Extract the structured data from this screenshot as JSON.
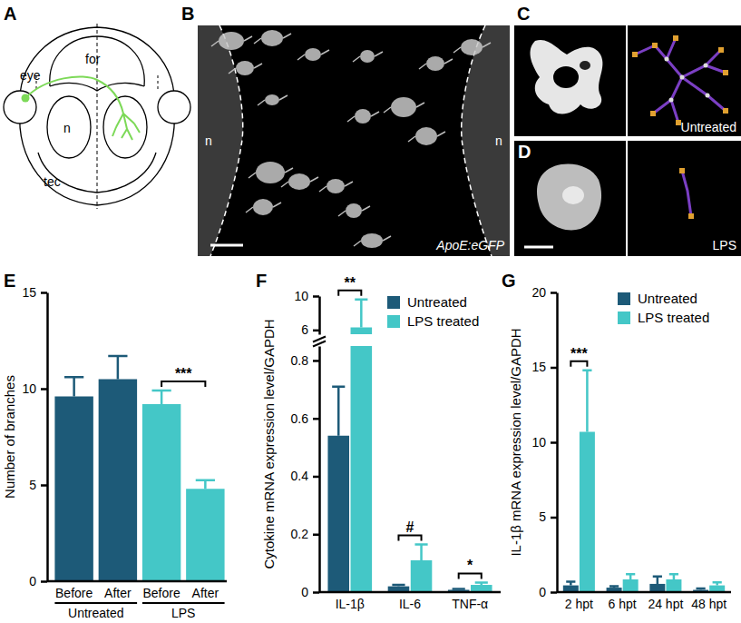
{
  "figure": {
    "panel_letters": [
      "A",
      "B",
      "C",
      "D",
      "E",
      "F",
      "G"
    ]
  },
  "diagram": {
    "labels": [
      "eye",
      "for",
      "n",
      "tec"
    ]
  },
  "images": {
    "B": {
      "labels": [
        "n",
        "n"
      ],
      "caption": "ApoE:eGFP"
    },
    "C": {
      "caption": "Untreated"
    },
    "D": {
      "caption": "LPS"
    }
  },
  "chart_data": [
    {
      "type": "bar",
      "categories": [
        "Before",
        "After",
        "Before",
        "After"
      ],
      "groups": [
        "Untreated",
        "LPS"
      ],
      "values": [
        9.6,
        10.5,
        9.2,
        4.8
      ],
      "errors": [
        1.0,
        1.2,
        0.7,
        0.45
      ],
      "colors": [
        "#1d5a78",
        "#1d5a78",
        "#44c7c7",
        "#44c7c7"
      ],
      "y_label": "Number of branches",
      "ylim": [
        0,
        15
      ],
      "yticks": [
        0,
        5,
        10,
        15
      ],
      "annotations": [
        {
          "text": "***",
          "x": [
            2,
            3
          ]
        }
      ]
    },
    {
      "type": "bar",
      "categories": [
        "IL-1β",
        "IL-6",
        "TNF-α"
      ],
      "series": [
        {
          "name": "Untreated",
          "color": "#1d5a78",
          "values": [
            0.54,
            0.02,
            0.008
          ],
          "errors": [
            0.17,
            0.005,
            0.003
          ]
        },
        {
          "name": "LPS treated",
          "color": "#44c7c7",
          "values": [
            6.3,
            0.11,
            0.025
          ],
          "errors": [
            3.3,
            0.055,
            0.008
          ]
        }
      ],
      "y_label": "Cytokine mRNA expression level/GAPDH",
      "ylim": [
        0,
        10
      ],
      "axis_break": [
        0.85,
        5.5
      ],
      "yticks": [
        0,
        0.2,
        0.4,
        0.6,
        0.8,
        6,
        10
      ],
      "legend": "top-right",
      "annotations": [
        {
          "text": "**",
          "x": 0
        },
        {
          "text": "#",
          "x": 1
        },
        {
          "text": "*",
          "x": 2
        }
      ]
    },
    {
      "type": "bar",
      "categories": [
        "2 hpt",
        "6 hpt",
        "24 hpt",
        "48 hpt"
      ],
      "series": [
        {
          "name": "Untreated",
          "color": "#1d5a78",
          "values": [
            0.45,
            0.3,
            0.55,
            0.15
          ],
          "errors": [
            0.25,
            0.1,
            0.5,
            0.1
          ]
        },
        {
          "name": "LPS treated",
          "color": "#44c7c7",
          "values": [
            10.7,
            0.85,
            0.85,
            0.45
          ],
          "errors": [
            4.1,
            0.35,
            0.35,
            0.2
          ]
        }
      ],
      "y_label": "IL-1β mRNA expression level/GAPDH",
      "ylim": [
        0,
        20
      ],
      "yticks": [
        0,
        5,
        10,
        15,
        20
      ],
      "legend": "top-right",
      "annotations": [
        {
          "text": "***",
          "x": 0
        }
      ]
    }
  ]
}
